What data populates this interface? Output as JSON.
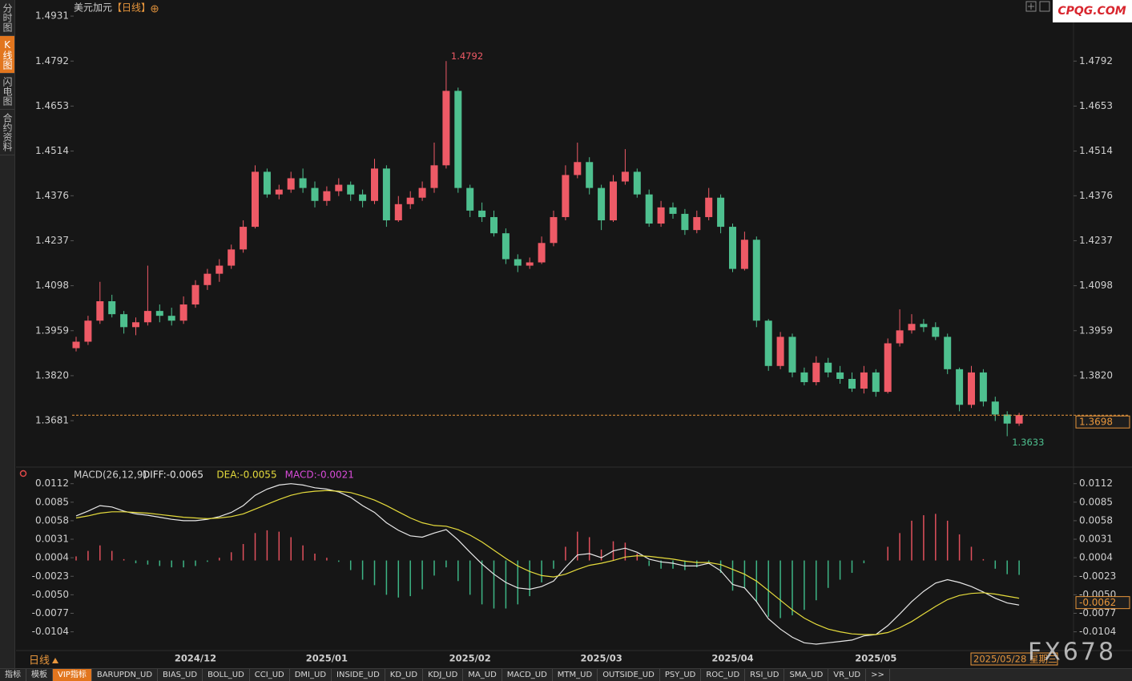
{
  "chart_data": [
    {
      "type": "candlestick",
      "title": "美元加元",
      "subtitle": "【日线】",
      "categories": [
        null,
        null,
        null,
        null,
        null,
        null,
        null,
        null,
        null,
        null,
        "2024/12",
        null,
        null,
        null,
        null,
        null,
        null,
        null,
        null,
        null,
        null,
        "2025/01",
        null,
        null,
        null,
        null,
        null,
        null,
        null,
        null,
        null,
        null,
        null,
        "2025/02",
        null,
        null,
        null,
        null,
        null,
        null,
        null,
        null,
        null,
        null,
        "2025/03",
        null,
        null,
        null,
        null,
        null,
        null,
        null,
        null,
        null,
        null,
        "2025/04",
        null,
        null,
        null,
        null,
        null,
        null,
        null,
        null,
        null,
        null,
        null,
        "2025/05",
        null,
        null,
        null,
        null,
        null,
        null,
        null,
        null,
        null,
        null,
        null,
        null
      ],
      "open": [
        1.3905,
        1.3925,
        1.399,
        1.405,
        1.401,
        1.397,
        1.3985,
        1.402,
        1.4005,
        1.399,
        1.404,
        1.41,
        1.4135,
        1.416,
        1.421,
        1.428,
        1.445,
        1.438,
        1.4395,
        1.443,
        1.44,
        1.436,
        1.439,
        1.441,
        1.438,
        1.436,
        1.446,
        1.43,
        1.435,
        1.437,
        1.44,
        1.447,
        1.47,
        1.44,
        1.433,
        1.431,
        1.426,
        1.418,
        1.416,
        1.417,
        1.423,
        1.431,
        1.444,
        1.448,
        1.44,
        1.43,
        1.442,
        1.445,
        1.438,
        1.429,
        1.434,
        1.432,
        1.427,
        1.431,
        1.437,
        1.428,
        1.415,
        1.424,
        1.399,
        1.385,
        1.394,
        1.383,
        1.38,
        1.386,
        1.383,
        1.381,
        1.378,
        1.383,
        1.377,
        1.392,
        1.396,
        1.398,
        1.397,
        1.394,
        1.384,
        1.373,
        1.383,
        1.374,
        1.37,
        1.3672
      ],
      "high": [
        1.394,
        1.4005,
        1.411,
        1.407,
        1.402,
        1.4,
        1.416,
        1.404,
        1.403,
        1.4065,
        1.4115,
        1.415,
        1.418,
        1.4225,
        1.43,
        1.447,
        1.446,
        1.441,
        1.445,
        1.446,
        1.442,
        1.4405,
        1.443,
        1.442,
        1.4395,
        1.449,
        1.447,
        1.4375,
        1.439,
        1.442,
        1.454,
        1.4792,
        1.471,
        1.441,
        1.4355,
        1.433,
        1.4275,
        1.4195,
        1.4185,
        1.425,
        1.433,
        1.447,
        1.454,
        1.4495,
        1.441,
        1.444,
        1.452,
        1.446,
        1.4395,
        1.436,
        1.4355,
        1.4335,
        1.433,
        1.44,
        1.438,
        1.429,
        1.4265,
        1.425,
        1.3995,
        1.3955,
        1.395,
        1.3845,
        1.388,
        1.3875,
        1.385,
        1.383,
        1.385,
        1.384,
        1.3935,
        1.4025,
        1.401,
        1.3995,
        1.3985,
        1.395,
        1.3845,
        1.385,
        1.384,
        1.3755,
        1.371,
        1.3705
      ],
      "low": [
        1.3895,
        1.3915,
        1.398,
        1.4,
        1.395,
        1.3945,
        1.3975,
        1.3985,
        1.3975,
        1.398,
        1.403,
        1.4085,
        1.411,
        1.415,
        1.42,
        1.4275,
        1.437,
        1.4365,
        1.4385,
        1.4385,
        1.434,
        1.4345,
        1.4375,
        1.436,
        1.434,
        1.435,
        1.428,
        1.4295,
        1.4335,
        1.436,
        1.4385,
        1.446,
        1.4385,
        1.431,
        1.4295,
        1.425,
        1.4165,
        1.414,
        1.415,
        1.4165,
        1.422,
        1.43,
        1.443,
        1.438,
        1.427,
        1.4295,
        1.441,
        1.437,
        1.428,
        1.428,
        1.4305,
        1.4255,
        1.426,
        1.43,
        1.426,
        1.414,
        1.4145,
        1.397,
        1.3835,
        1.384,
        1.3815,
        1.379,
        1.379,
        1.3815,
        1.3795,
        1.377,
        1.3765,
        1.3755,
        1.3765,
        1.391,
        1.395,
        1.3955,
        1.393,
        1.3825,
        1.371,
        1.372,
        1.3725,
        1.368,
        1.3633,
        1.3665
      ],
      "close": [
        1.3925,
        1.399,
        1.405,
        1.401,
        1.397,
        1.3985,
        1.402,
        1.4005,
        1.399,
        1.404,
        1.41,
        1.4135,
        1.416,
        1.421,
        1.428,
        1.445,
        1.438,
        1.4395,
        1.443,
        1.44,
        1.436,
        1.439,
        1.441,
        1.438,
        1.436,
        1.446,
        1.43,
        1.435,
        1.437,
        1.44,
        1.447,
        1.47,
        1.44,
        1.433,
        1.431,
        1.426,
        1.418,
        1.416,
        1.417,
        1.423,
        1.431,
        1.444,
        1.448,
        1.44,
        1.43,
        1.442,
        1.445,
        1.438,
        1.429,
        1.434,
        1.432,
        1.427,
        1.431,
        1.437,
        1.428,
        1.415,
        1.424,
        1.399,
        1.385,
        1.394,
        1.383,
        1.38,
        1.386,
        1.383,
        1.381,
        1.378,
        1.383,
        1.377,
        1.392,
        1.396,
        1.398,
        1.397,
        1.394,
        1.384,
        1.373,
        1.383,
        1.374,
        1.37,
        1.3672,
        1.3698
      ],
      "up_color": "#ee5a66",
      "down_color": "#4ec08f",
      "last_price_color": "#e8963c",
      "ylim": [
        1.3545,
        1.4956
      ],
      "yticks": [
        1.4931,
        1.4792,
        1.4653,
        1.4514,
        1.4376,
        1.4237,
        1.4098,
        1.3959,
        {
          "value": 1.382,
          "label": "1.3820"
        },
        1.3681
      ]
    },
    {
      "type": "macd",
      "title": "MACD(26,12,9)",
      "series": [
        {
          "name": "DIFF",
          "value_label": "DIFF:-0.0065",
          "color": "#e8e8e8",
          "values": [
            0.0065,
            0.0072,
            0.008,
            0.0078,
            0.0072,
            0.0068,
            0.0066,
            0.0063,
            0.006,
            0.0058,
            0.0058,
            0.006,
            0.0064,
            0.007,
            0.008,
            0.0095,
            0.0104,
            0.011,
            0.0112,
            0.011,
            0.0106,
            0.0104,
            0.01,
            0.0092,
            0.008,
            0.007,
            0.0055,
            0.0044,
            0.0036,
            0.0034,
            0.004,
            0.0045,
            0.003,
            0.0012,
            -0.0005,
            -0.002,
            -0.0032,
            -0.004,
            -0.0042,
            -0.0038,
            -0.003,
            -0.001,
            0.0008,
            0.001,
            0.0004,
            0.0014,
            0.0018,
            0.0012,
            0.0002,
            -0.0002,
            -0.0004,
            -0.0008,
            -0.0008,
            -0.0004,
            -0.0015,
            -0.0035,
            -0.004,
            -0.006,
            -0.0085,
            -0.01,
            -0.0112,
            -0.012,
            -0.0122,
            -0.012,
            -0.0118,
            -0.0116,
            -0.011,
            -0.0108,
            -0.0095,
            -0.0078,
            -0.006,
            -0.0045,
            -0.0033,
            -0.0028,
            -0.0032,
            -0.0038,
            -0.0046,
            -0.0055,
            -0.0062,
            -0.0065
          ]
        },
        {
          "name": "DEA",
          "value_label": "DEA:-0.0055",
          "color": "#e6dc3c",
          "values": [
            0.0062,
            0.0065,
            0.0069,
            0.0071,
            0.0071,
            0.007,
            0.0069,
            0.0067,
            0.0065,
            0.0063,
            0.0062,
            0.0061,
            0.0062,
            0.0064,
            0.0068,
            0.0075,
            0.0082,
            0.0089,
            0.0095,
            0.0099,
            0.0101,
            0.0102,
            0.0101,
            0.0099,
            0.0094,
            0.0088,
            0.008,
            0.0071,
            0.0062,
            0.0055,
            0.0051,
            0.005,
            0.0045,
            0.0037,
            0.0027,
            0.0015,
            0.0003,
            -0.0008,
            -0.0016,
            -0.0022,
            -0.0024,
            -0.002,
            -0.0013,
            -0.0007,
            -0.0004,
            0,
            0.0005,
            0.0007,
            0.0006,
            0.0004,
            0.0002,
            -0.0001,
            -0.0003,
            -0.0003,
            -0.0006,
            -0.0013,
            -0.002,
            -0.003,
            -0.0044,
            -0.0058,
            -0.0072,
            -0.0084,
            -0.0093,
            -0.01,
            -0.0104,
            -0.0107,
            -0.0108,
            -0.0108,
            -0.0105,
            -0.0098,
            -0.0089,
            -0.0078,
            -0.0067,
            -0.0057,
            -0.0051,
            -0.0048,
            -0.0047,
            -0.0049,
            -0.0052,
            -0.0055
          ]
        },
        {
          "name": "MACD",
          "value_label": "MACD:-0.0021",
          "color": "#d94bd9",
          "values": [
            0.0006,
            0.0014,
            0.0022,
            0.0014,
            0.0002,
            -0.0004,
            -0.0006,
            -0.0008,
            -0.001,
            -0.001,
            -0.0008,
            -0.0002,
            0.0004,
            0.0012,
            0.0024,
            0.004,
            0.0044,
            0.0042,
            0.0034,
            0.0022,
            0.001,
            0.0004,
            -0.0002,
            -0.0014,
            -0.0028,
            -0.0036,
            -0.005,
            -0.0054,
            -0.0052,
            -0.0042,
            -0.0022,
            -0.001,
            -0.003,
            -0.005,
            -0.0064,
            -0.007,
            -0.007,
            -0.0064,
            -0.0052,
            -0.0032,
            -0.0012,
            0.002,
            0.0042,
            0.0034,
            0.0016,
            0.0028,
            0.0026,
            0.001,
            -0.0008,
            -0.0012,
            -0.0012,
            -0.0014,
            -0.001,
            -0.0002,
            -0.0018,
            -0.0044,
            -0.004,
            -0.006,
            -0.0082,
            -0.0084,
            -0.008,
            -0.0072,
            -0.0058,
            -0.004,
            -0.0028,
            -0.0018,
            -0.0004,
            0,
            0.002,
            0.004,
            0.0058,
            0.0066,
            0.0068,
            0.0058,
            0.0038,
            0.002,
            0.0002,
            -0.0012,
            -0.002,
            -0.0021
          ]
        }
      ],
      "up_color": "#e0505c",
      "down_color": "#3db585",
      "cursor_value": -0.0062,
      "ylim": [
        -0.0129,
        0.0128
      ],
      "yticks": [
        0.0112,
        0.0085,
        0.0058,
        0.0031,
        0.0004,
        -0.0023,
        {
          "value": -0.005,
          "label": "-0.0050"
        },
        -0.0077,
        -0.0104
      ]
    }
  ],
  "sidebar": [
    "分时图",
    "K线图",
    "闪电图",
    "合约资料"
  ],
  "sidebar_active": 1,
  "period": "日线",
  "cursor_date": "2025/05/28 星期三",
  "logo": "CPQG.COM",
  "watermark": "FX678",
  "toolbar": [
    "指标",
    "模板",
    "VIP指标",
    "BARUPDN_UD",
    "BIAS_UD",
    "BOLL_UD",
    "CCI_UD",
    "DMI_UD",
    "INSIDE_UD",
    "KD_UD",
    "KDJ_UD",
    "MA_UD",
    "MACD_UD",
    "MTM_UD",
    "OUTSIDE_UD",
    "PSY_UD",
    "ROC_UD",
    "RSI_UD",
    "SMA_UD",
    "VR_UD",
    ">>"
  ],
  "toolbar_active": 2
}
